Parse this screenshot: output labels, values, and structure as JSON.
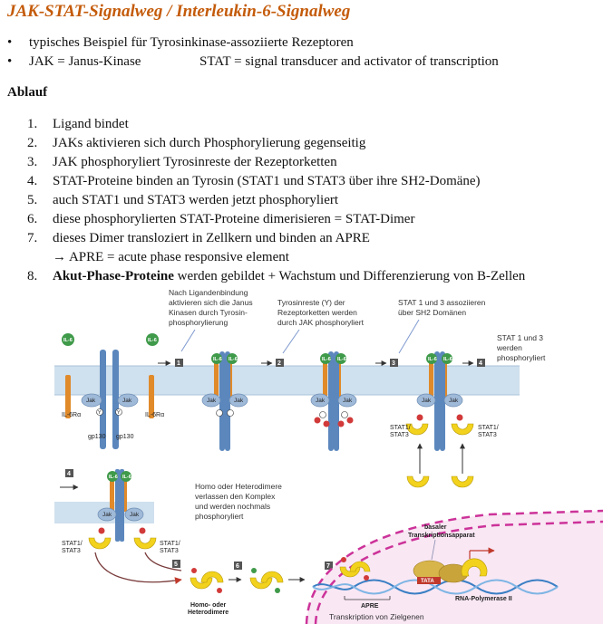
{
  "title": "JAK-STAT-Signalweg / Interleukin-6-Signalweg",
  "bullets": [
    {
      "marker": "•",
      "text": "typisches Beispiel für Tyrosinkinase-assoziierte Rezeptoren"
    },
    {
      "marker": "•",
      "text": "JAK = Janus-Kinase",
      "text2": "STAT = signal transducer and activator of transcription"
    }
  ],
  "section_heading": "Ablauf",
  "steps": [
    {
      "num": "1.",
      "text": "Ligand bindet"
    },
    {
      "num": "2.",
      "text": "JAKs aktivieren sich durch Phosphorylierung gegenseitig"
    },
    {
      "num": "3.",
      "text": "JAK phosphoryliert Tyrosinreste der Rezeptorketten"
    },
    {
      "num": "4.",
      "text": "STAT-Proteine binden an Tyrosin (STAT1 und STAT3 über ihre SH2-Domäne)"
    },
    {
      "num": "5.",
      "text": "auch STAT1 und STAT3 werden jetzt phosphoryliert"
    },
    {
      "num": "6.",
      "text": "diese phosphorylierten STAT-Proteine dimerisieren = STAT-Dimer"
    },
    {
      "num": "7.",
      "text": "dieses Dimer transloziert in Zellkern und binden an APRE"
    },
    {
      "arrow": "→",
      "note": "APRE = acute phase responsive element"
    },
    {
      "num": "8.",
      "bold": "Akut-Phase-Proteine",
      "text": " werden gebildet + Wachstum und Differenzierung von B-Zellen"
    }
  ],
  "figure": {
    "caption_1": [
      "Nach Ligandenbindung",
      "aktivieren sich die Janus",
      "Kinasen durch Tyrosin-",
      "phosphorylierung"
    ],
    "caption_2": [
      "Tyrosinreste (Y) der",
      "Rezeptorketten werden",
      "durch JAK phosphoryliert"
    ],
    "caption_3": [
      "STAT 1 und 3 assoziieren",
      "über SH2 Domänen"
    ],
    "caption_4": [
      "STAT 1 und 3",
      "werden",
      "phosphoryliert"
    ],
    "caption_5": [
      "Homo oder Heterodimere",
      "verlassen den Komplex",
      "und werden nochmals",
      "phosphoryliert"
    ],
    "step_numbers": [
      "1",
      "2",
      "3",
      "4",
      "4",
      "5",
      "6",
      "7"
    ],
    "ligand_label": "IL-6",
    "jak_label": "Jak",
    "tyrosine_label": "Y",
    "phosphate_label": "P",
    "receptor_alpha_label": "IL-6Rα",
    "gp130_label": "gp130",
    "stat_label": [
      "STAT1/",
      "STAT3"
    ],
    "homo_label": [
      "Homo- oder",
      "Heterodimere"
    ],
    "basal_label": [
      "basaler",
      "Transkriptionsapparat"
    ],
    "tata_label": "TATA",
    "rna_pol_label": "RNA-Polymerase II",
    "apre_label": "APRE",
    "transcription_label": "Transkription von Zielgenen",
    "colors": {
      "membrane": "#cfe0ee",
      "gp130": "#5b87bd",
      "il6r": "#e08a2a",
      "ligand": "#3f9a4a",
      "jak": "#9fb9d8",
      "stat": "#f2d21c",
      "phosphate": "#d23a3a",
      "nucleus": "#cc3399",
      "title": "#c45b0a"
    }
  }
}
